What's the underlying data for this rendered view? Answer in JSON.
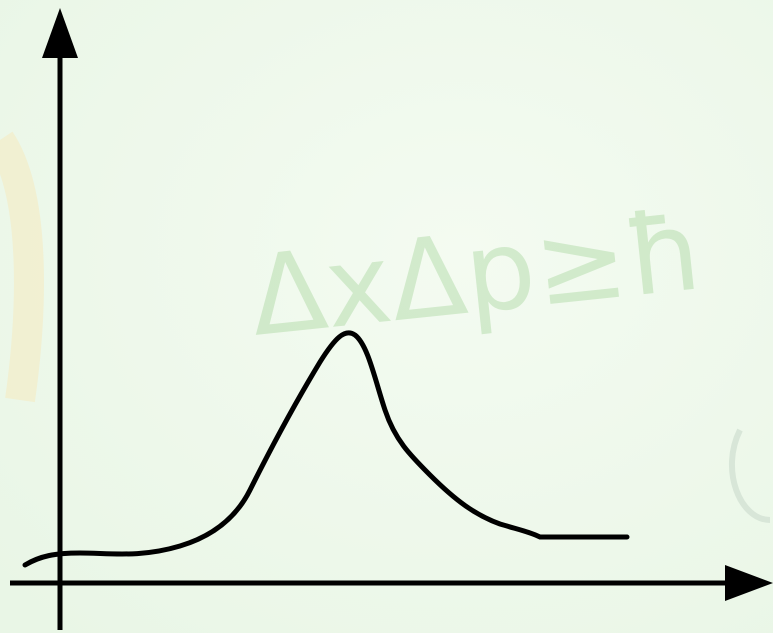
{
  "watermark": "ΔxΔp≥ħ"
}
